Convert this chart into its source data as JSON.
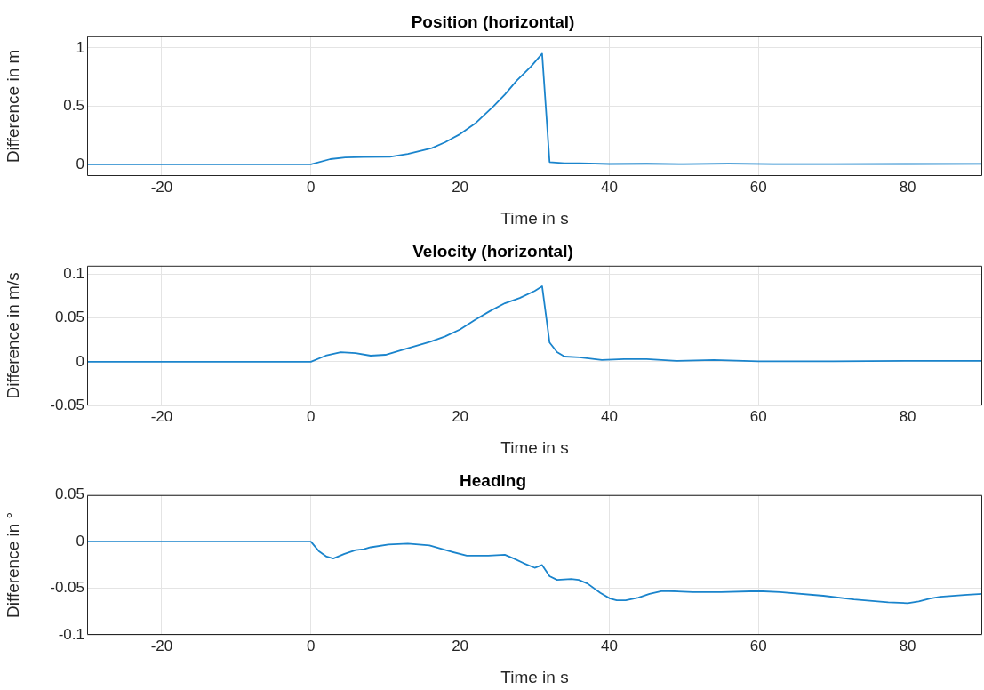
{
  "chart_data": [
    {
      "type": "line",
      "title": "Position (horizontal)",
      "xlabel": "Time in s",
      "ylabel": "Difference in m",
      "color": "#1a84cc",
      "grid": true,
      "xlim": [
        -30,
        90
      ],
      "xticks": [
        -20,
        0,
        20,
        40,
        60,
        80
      ],
      "ylim": [
        -0.1,
        1.1
      ],
      "yticks": [
        0,
        0.5,
        1
      ],
      "x": [
        -30,
        0,
        2.6,
        4.6,
        7,
        10.6,
        13,
        16.2,
        18,
        20,
        22,
        24.5,
        26,
        27.6,
        29.5,
        31,
        32,
        34,
        36,
        40,
        45,
        50,
        56,
        62,
        70,
        80,
        90
      ],
      "values": [
        0,
        0,
        0.045,
        0.06,
        0.063,
        0.065,
        0.09,
        0.14,
        0.19,
        0.26,
        0.35,
        0.5,
        0.6,
        0.72,
        0.84,
        0.95,
        0.02,
        0.01,
        0.01,
        0.003,
        0.005,
        0.002,
        0.006,
        0.002,
        0.002,
        0.003,
        0.004
      ]
    },
    {
      "type": "line",
      "title": "Velocity (horizontal)",
      "xlabel": "Time in s",
      "ylabel": "Difference in m/s",
      "color": "#1a84cc",
      "grid": true,
      "xlim": [
        -30,
        90
      ],
      "xticks": [
        -20,
        0,
        20,
        40,
        60,
        80
      ],
      "ylim": [
        -0.05,
        0.11
      ],
      "yticks": [
        -0.05,
        0,
        0.05,
        0.1
      ],
      "x": [
        -30,
        0,
        2,
        4,
        6,
        8,
        10,
        12,
        16,
        18,
        20,
        22,
        24,
        26,
        28,
        30,
        31,
        32,
        33,
        34,
        36,
        38,
        39,
        42,
        45,
        49,
        54,
        60,
        70,
        80,
        90
      ],
      "values": [
        0,
        0,
        0.007,
        0.011,
        0.01,
        0.007,
        0.008,
        0.013,
        0.023,
        0.029,
        0.037,
        0.048,
        0.058,
        0.067,
        0.073,
        0.081,
        0.0865,
        0.022,
        0.011,
        0.006,
        0.005,
        0.003,
        0.002,
        0.003,
        0.003,
        0.001,
        0.002,
        0.0005,
        0.0005,
        0.001,
        0.001
      ]
    },
    {
      "type": "line",
      "title": "Heading",
      "xlabel": "Time in s",
      "ylabel": "Difference in °",
      "color": "#1a84cc",
      "grid": true,
      "xlim": [
        -30,
        90
      ],
      "xticks": [
        -20,
        0,
        20,
        40,
        60,
        80
      ],
      "ylim": [
        -0.1,
        0.05
      ],
      "yticks": [
        -0.1,
        -0.05,
        0,
        0.05
      ],
      "x": [
        -30,
        0,
        1.05,
        2.1,
        3,
        4.5,
        6,
        7.1,
        8,
        10.4,
        13,
        15.9,
        18.5,
        20.9,
        23.8,
        26,
        27.2,
        28.5,
        30,
        31,
        32,
        33,
        34.9,
        35.9,
        37.1,
        38.8,
        40.1,
        41,
        42.2,
        43.9,
        45.4,
        47.1,
        48,
        51.2,
        55,
        60,
        62.9,
        68.7,
        72.8,
        77.4,
        80,
        81.5,
        83,
        84.4,
        88,
        90
      ],
      "values": [
        0,
        0,
        -0.01,
        -0.016,
        -0.018,
        -0.013,
        -0.009,
        -0.008,
        -0.006,
        -0.003,
        -0.002,
        -0.004,
        -0.01,
        -0.015,
        -0.015,
        -0.014,
        -0.018,
        -0.023,
        -0.028,
        -0.025,
        -0.037,
        -0.041,
        -0.04,
        -0.041,
        -0.045,
        -0.055,
        -0.061,
        -0.063,
        -0.063,
        -0.06,
        -0.056,
        -0.053,
        -0.053,
        -0.054,
        -0.054,
        -0.053,
        -0.054,
        -0.058,
        -0.062,
        -0.065,
        -0.066,
        -0.064,
        -0.061,
        -0.059,
        -0.057,
        -0.056
      ]
    }
  ]
}
